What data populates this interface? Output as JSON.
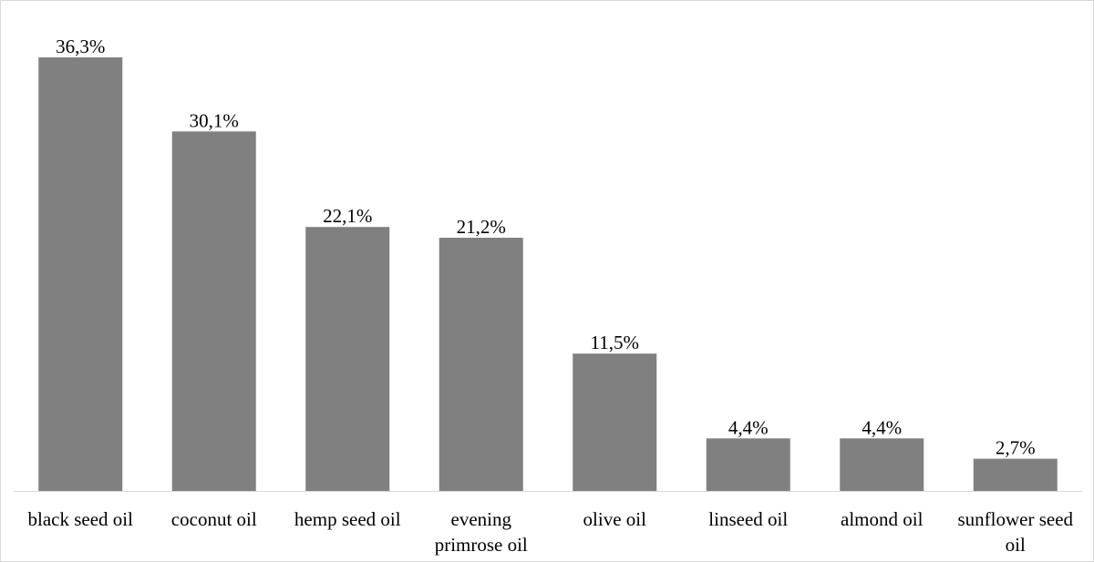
{
  "chart_data": {
    "type": "bar",
    "categories": [
      "black seed oil",
      "coconut oil",
      "hemp seed oil",
      "evening primrose oil",
      "olive oil",
      "linseed oil",
      "almond oil",
      "sunflower seed oil"
    ],
    "values": [
      36.3,
      30.1,
      22.1,
      21.2,
      11.5,
      4.4,
      4.4,
      2.7
    ],
    "value_labels": [
      "36,3%",
      "30,1%",
      "22,1%",
      "21,2%",
      "11,5%",
      "4,4%",
      "4,4%",
      "2,7%"
    ],
    "category_label_lines": [
      [
        "black seed oil"
      ],
      [
        "coconut oil"
      ],
      [
        "hemp seed oil"
      ],
      [
        "evening",
        "primrose oil"
      ],
      [
        "olive oil"
      ],
      [
        "linseed oil"
      ],
      [
        "almond oil"
      ],
      [
        "sunflower seed",
        "oil"
      ]
    ],
    "title": "",
    "xlabel": "",
    "ylabel": "",
    "ylim": [
      0,
      36.3
    ],
    "grid": false,
    "legend": "none",
    "bar_color": "#808080",
    "axis_color": "#d9d9d9"
  }
}
